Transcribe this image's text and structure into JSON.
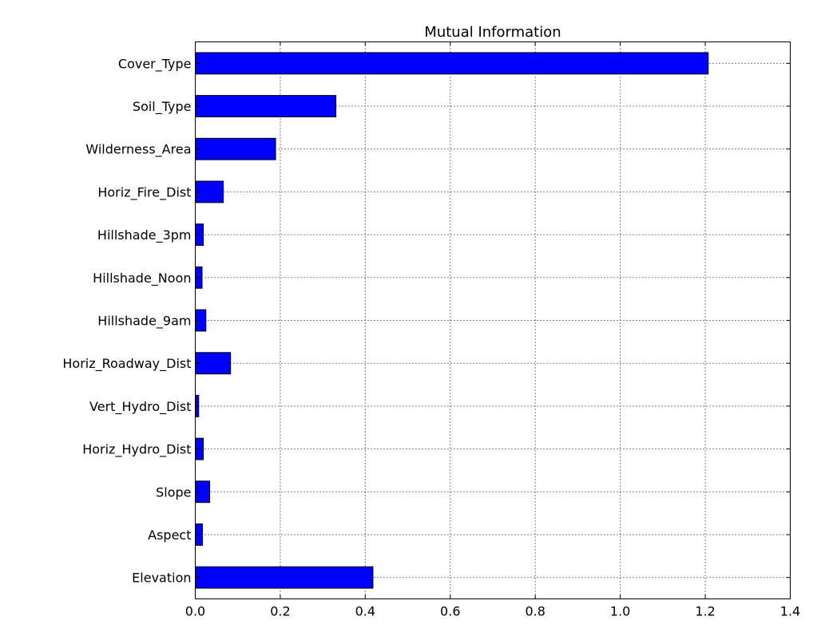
{
  "chart_data": {
    "type": "bar",
    "orientation": "horizontal",
    "title": "Mutual Information",
    "xlabel": "",
    "ylabel": "",
    "categories": [
      "Cover_Type",
      "Soil_Type",
      "Wilderness_Area",
      "Horiz_Fire_Dist",
      "Hillshade_3pm",
      "Hillshade_Noon",
      "Hillshade_9am",
      "Horiz_Roadway_Dist",
      "Vert_Hydro_Dist",
      "Horiz_Hydro_Dist",
      "Slope",
      "Aspect",
      "Elevation"
    ],
    "values": [
      1.207,
      0.331,
      0.189,
      0.066,
      0.019,
      0.016,
      0.025,
      0.083,
      0.008,
      0.019,
      0.034,
      0.017,
      0.418
    ],
    "xlim": [
      0.0,
      1.4
    ],
    "xticks": [
      "0.0",
      "0.2",
      "0.4",
      "0.6",
      "0.8",
      "1.0",
      "1.2",
      "1.4"
    ],
    "grid": true,
    "bar_color": "#0000ff"
  }
}
